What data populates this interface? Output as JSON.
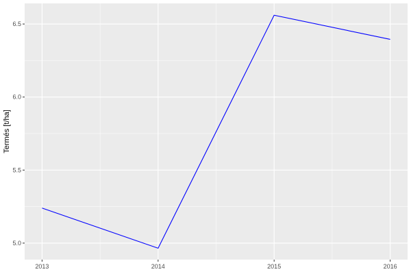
{
  "chart_data": {
    "type": "line",
    "title": "",
    "xlabel": "",
    "ylabel": "Termés [t/ha]",
    "x": [
      2013,
      2014,
      2015,
      2016
    ],
    "values": [
      5.24,
      4.965,
      6.56,
      6.395
    ],
    "xticks": [
      "2013",
      "2014",
      "2015",
      "2016"
    ],
    "yticks": [
      "5.0",
      "5.5",
      "6.0",
      "6.5"
    ],
    "xlim": [
      2012.85,
      2016.15
    ],
    "ylim": [
      4.887,
      6.641
    ],
    "grid": true,
    "line_color": "#0000ff",
    "panel_color": "#ebebeb",
    "grid_color": "#ffffff"
  }
}
